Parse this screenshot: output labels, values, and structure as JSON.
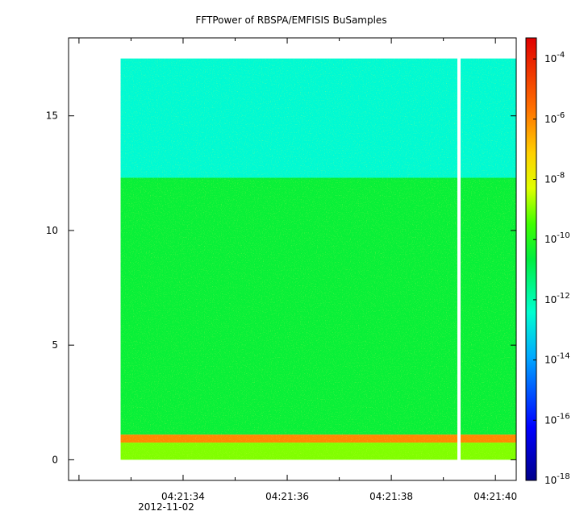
{
  "chart_data": {
    "type": "heatmap",
    "title": "FFTPower of RBSPA/EMFISIS  BuSamples",
    "xlabel": "",
    "ylabel": "",
    "x_tick_labels": [
      "04:21:34",
      "04:21:36",
      "04:21:38",
      "04:21:40"
    ],
    "x_tick_seconds": [
      34,
      36,
      38,
      40
    ],
    "x_range_seconds": [
      31.8,
      40.4
    ],
    "x_date_label": "2012-11-02",
    "y_ticks": [
      0,
      5,
      10,
      15
    ],
    "y_tick_labels": [
      "0",
      "5",
      "10",
      "15"
    ],
    "ylim": [
      -0.9,
      18.4
    ],
    "data_extent": {
      "x_start_seconds": 32.8,
      "x_end_seconds": 40.4,
      "y_max": 17.5,
      "gap_at_seconds": 39.3
    },
    "bands": [
      {
        "y_from": 0.0,
        "y_to": 0.75,
        "log_power": -9.0
      },
      {
        "y_from": 0.75,
        "y_to": 1.1,
        "log_power": -6.0
      },
      {
        "y_from": 1.1,
        "y_to": 12.3,
        "log_power": -10.5
      },
      {
        "y_from": 12.3,
        "y_to": 17.5,
        "log_power": -12.5
      }
    ],
    "colorbar": {
      "scale": "log",
      "range_exponents": [
        -18,
        -3.3
      ],
      "tick_exponents": [
        -4,
        -6,
        -8,
        -10,
        -12,
        -14,
        -16,
        -18
      ],
      "tick_base": "10"
    },
    "grid": false,
    "legend": "none"
  }
}
